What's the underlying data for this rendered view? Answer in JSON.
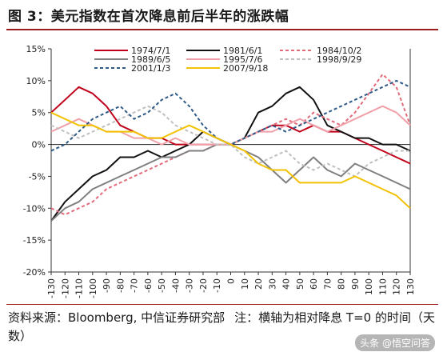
{
  "header": {
    "title": "图 3：美元指数在首次降息前后半年的涨跌幅"
  },
  "footer": {
    "source": "资料来源：Bloomberg, 中信证券研究部",
    "note": "注：横轴为相对降息 T=0 的时间（天数）",
    "watermark": "头条 @悟空问答"
  },
  "chart_data": {
    "type": "line",
    "title": "图 3：美元指数在首次降息前后半年的涨跌幅",
    "xlabel": "",
    "ylabel": "",
    "xlim": [
      -130,
      130
    ],
    "ylim": [
      -20,
      15
    ],
    "x_ticks": [
      -130,
      -120,
      -110,
      -100,
      -90,
      -80,
      -70,
      -60,
      -50,
      -40,
      -30,
      -20,
      -10,
      0,
      10,
      20,
      30,
      40,
      50,
      60,
      70,
      80,
      90,
      100,
      110,
      120,
      130
    ],
    "y_ticks": [
      -20,
      -15,
      -10,
      -5,
      0,
      5,
      10,
      15
    ],
    "y_tick_labels": [
      "-20%",
      "-15%",
      "-10%",
      "-5%",
      "0%",
      "5%",
      "10%",
      "15%"
    ],
    "grid": false,
    "legend_position": "top",
    "x": [
      -130,
      -120,
      -110,
      -100,
      -90,
      -80,
      -70,
      -60,
      -50,
      -40,
      -30,
      -20,
      -10,
      0,
      10,
      20,
      30,
      40,
      50,
      60,
      70,
      80,
      90,
      100,
      110,
      120,
      130
    ],
    "series": [
      {
        "name": "1974/7/1",
        "color": "#c0001a",
        "dash": "solid",
        "values": [
          5,
          7,
          9,
          8,
          6,
          3,
          2,
          1,
          1,
          0,
          0,
          0,
          0,
          0,
          1,
          2,
          3,
          3,
          2,
          3,
          2,
          2,
          1,
          0,
          -1,
          -2,
          -3
        ]
      },
      {
        "name": "1981/6/1",
        "color": "#111111",
        "dash": "solid",
        "values": [
          -12,
          -9,
          -7,
          -5,
          -4,
          -2,
          -2,
          -1,
          -2,
          -1,
          0,
          2,
          1,
          0,
          1,
          5,
          6,
          8,
          9,
          7,
          3,
          2,
          1,
          1,
          0,
          0,
          -1
        ]
      },
      {
        "name": "1984/10/2",
        "color": "#e26a7a",
        "dash": "dashed",
        "values": [
          -10,
          -11,
          -10,
          -9,
          -7,
          -6,
          -5,
          -4,
          -3,
          -2,
          -1,
          -1,
          0,
          0,
          1,
          2,
          3,
          4,
          3,
          5,
          4,
          3,
          5,
          8,
          11,
          9,
          3
        ]
      },
      {
        "name": "1989/6/5",
        "color": "#7f7f7f",
        "dash": "solid",
        "values": [
          -12,
          -10,
          -9,
          -7,
          -6,
          -5,
          -4,
          -3,
          -2,
          -2,
          -1,
          -1,
          0,
          0,
          -1,
          -2,
          -4,
          -6,
          -4,
          -2,
          -4,
          -5,
          -3,
          -4,
          -5,
          -6,
          -7
        ]
      },
      {
        "name": "1995/7/6",
        "color": "#f0a0a8",
        "dash": "solid",
        "values": [
          2,
          3,
          4,
          3,
          2,
          2,
          1,
          1,
          0,
          1,
          0,
          0,
          0,
          0,
          1,
          2,
          2,
          3,
          4,
          3,
          2,
          3,
          4,
          5,
          6,
          5,
          3
        ]
      },
      {
        "name": "1998/9/29",
        "color": "#bfbfbf",
        "dash": "dashed",
        "values": [
          3,
          2,
          1,
          2,
          3,
          4,
          5,
          6,
          5,
          3,
          2,
          1,
          0,
          0,
          -2,
          -3,
          -2,
          -1,
          -3,
          -4,
          -3,
          -4,
          -5,
          -3,
          -2,
          -1,
          -1
        ]
      },
      {
        "name": "2001/1/3",
        "color": "#2e5a87",
        "dash": "dashed",
        "values": [
          -1,
          0,
          2,
          4,
          5,
          6,
          4,
          5,
          7,
          8,
          6,
          3,
          1,
          0,
          1,
          2,
          3,
          2,
          3,
          4,
          5,
          6,
          7,
          8,
          9,
          10,
          9
        ]
      },
      {
        "name": "2007/9/18",
        "color": "#f2c200",
        "dash": "solid",
        "values": [
          5,
          4,
          3,
          3,
          2,
          2,
          2,
          1,
          1,
          2,
          3,
          2,
          1,
          0,
          -1,
          -3,
          -4,
          -4,
          -6,
          -6,
          -6,
          -6,
          -5,
          -6,
          -7,
          -8,
          -10
        ]
      }
    ]
  }
}
